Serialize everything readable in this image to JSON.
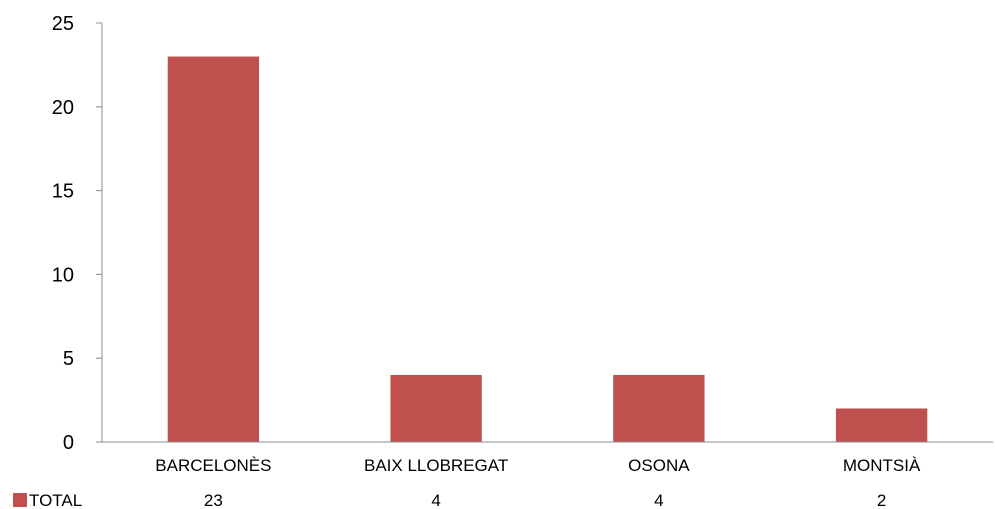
{
  "colors": {
    "bar": "#C0504D",
    "axis": "#8C8C8C"
  },
  "chart_data": {
    "type": "bar",
    "title": "",
    "xlabel": "",
    "ylabel": "",
    "ylim": [
      0,
      25
    ],
    "y_ticks": [
      "0",
      "5",
      "10",
      "15",
      "20",
      "25"
    ],
    "categories": [
      "BARCELONÈS",
      "BAIX LLOBREGAT",
      "OSONA",
      "MONTSIÀ"
    ],
    "series": [
      {
        "name": "TOTAL",
        "values": [
          23,
          4,
          4,
          2
        ]
      }
    ],
    "data_table": {
      "row_label": "TOTAL",
      "values": [
        "23",
        "4",
        "4",
        "2"
      ]
    },
    "grid": false,
    "legend": "data table (bottom-left)"
  }
}
